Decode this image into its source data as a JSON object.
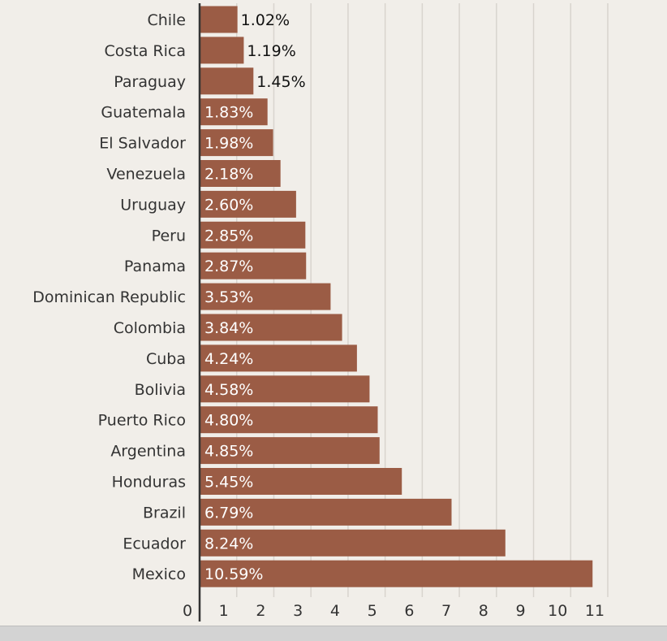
{
  "chart_data": {
    "type": "bar",
    "orientation": "horizontal",
    "categories": [
      "Chile",
      "Costa Rica",
      "Paraguay",
      "Guatemala",
      "El Salvador",
      "Venezuela",
      "Uruguay",
      "Peru",
      "Panama",
      "Dominican Republic",
      "Colombia",
      "Cuba",
      "Bolivia",
      "Puerto Rico",
      "Argentina",
      "Honduras",
      "Brazil",
      "Ecuador",
      "Mexico"
    ],
    "values": [
      1.02,
      1.19,
      1.45,
      1.83,
      1.98,
      2.18,
      2.6,
      2.85,
      2.87,
      3.53,
      3.84,
      4.24,
      4.58,
      4.8,
      4.85,
      5.45,
      6.79,
      8.24,
      10.59
    ],
    "data_labels": [
      "1.02%",
      "1.19%",
      "1.45%",
      "1.83%",
      "1.98%",
      "2.18%",
      "2.60%",
      "2.85%",
      "2.87%",
      "3.53%",
      "3.84%",
      "4.24%",
      "4.58%",
      "4.80%",
      "4.85%",
      "5.45%",
      "6.79%",
      "8.24%",
      "10.59%"
    ],
    "xticks": [
      0,
      1,
      2,
      3,
      4,
      5,
      6,
      7,
      8,
      9,
      10,
      11
    ],
    "xtick_labels": [
      "0",
      "1",
      "2",
      "3",
      "4",
      "5",
      "6",
      "7",
      "8",
      "9",
      "10",
      "11"
    ],
    "xlim": [
      0,
      11.4
    ],
    "title": "",
    "xlabel": "",
    "ylabel": "",
    "grid": "vertical",
    "legend": "none",
    "colors": {
      "bar": "#9b5c45",
      "bar_label_inside": "#ffffff",
      "bar_label_outside": "#111111",
      "grid": "#d8d4ce",
      "axis": "#333333",
      "text": "#333333",
      "background": "#f1eee9"
    }
  }
}
